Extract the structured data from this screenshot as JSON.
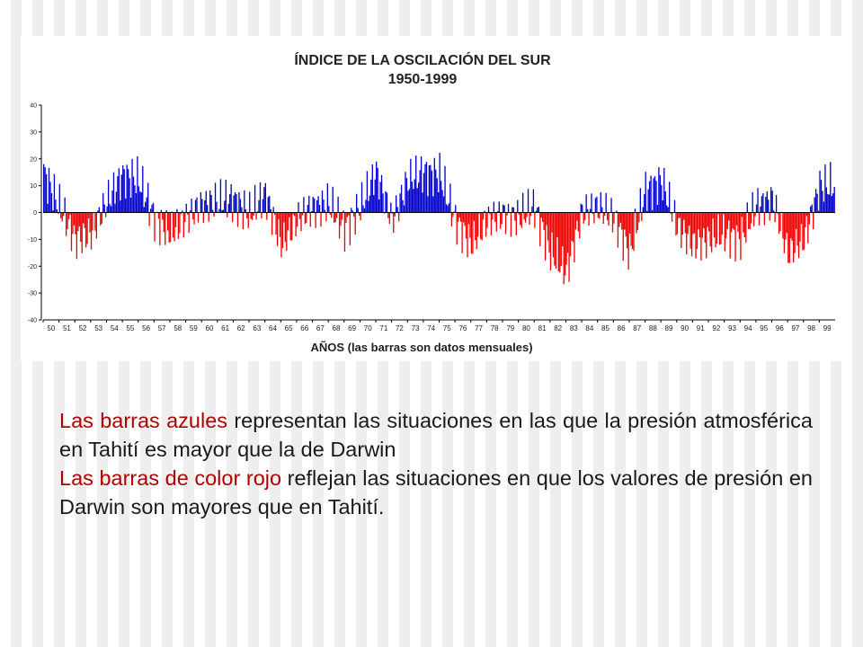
{
  "chart_data": {
    "type": "bar",
    "title": "ÍNDICE DE LA OSCILACIÓN DEL SUR",
    "subtitle": "1950-1999",
    "xlabel": "AÑOS (las barras son datos mensuales)",
    "ylabel": "",
    "ylim": [
      -40,
      40
    ],
    "yticks": [
      "40",
      "30",
      "20",
      "10",
      "0",
      "-10",
      "-20",
      "-30",
      "-40"
    ],
    "ytick_values": [
      40,
      30,
      20,
      10,
      0,
      -10,
      -20,
      -30,
      -40
    ],
    "categories": [
      "50",
      "51",
      "52",
      "53",
      "54",
      "55",
      "56",
      "57",
      "58",
      "59",
      "60",
      "61",
      "62",
      "63",
      "64",
      "65",
      "66",
      "67",
      "68",
      "69",
      "70",
      "71",
      "72",
      "73",
      "74",
      "75",
      "76",
      "77",
      "78",
      "79",
      "80",
      "81",
      "82",
      "83",
      "84",
      "85",
      "86",
      "87",
      "88",
      "89",
      "90",
      "91",
      "92",
      "93",
      "94",
      "95",
      "96",
      "97",
      "98",
      "99"
    ],
    "xtick_labels": [
      "50",
      "51",
      "52",
      "53",
      "54",
      "55",
      "56",
      "57",
      "58",
      "59",
      "60",
      "61",
      "62",
      "63",
      "64",
      "65",
      "66",
      "67",
      "68",
      "69",
      "70",
      "71",
      "72",
      "73",
      "74",
      "75",
      "76",
      "77",
      "78",
      "79",
      "80",
      "81",
      "82",
      "83",
      "84",
      "85",
      "86",
      "87",
      "88",
      "89",
      "90",
      "91",
      "92",
      "93",
      "94",
      "95",
      "96",
      "97",
      "98",
      "99"
    ],
    "annual_anchor_values": [
      15,
      2,
      -10,
      -8,
      4,
      14,
      12,
      -2,
      -8,
      -2,
      3,
      4,
      5,
      -1,
      7,
      -12,
      -3,
      2,
      3,
      -6,
      2,
      15,
      -3,
      12,
      15,
      14,
      -3,
      -12,
      -3,
      -1,
      -2,
      2,
      -15,
      -22,
      0,
      2,
      -2,
      -15,
      8,
      12,
      -5,
      -12,
      -10,
      -8,
      -10,
      2,
      5,
      -15,
      -10,
      10
    ],
    "positive_color": "#0000cc",
    "negative_color": "#ee0000",
    "legend": "none",
    "grid": false
  },
  "caption": {
    "p1_highlight": "Las barras azules",
    "p1_text": " representan las situaciones en las que la presión atmosférica en Tahití es mayor que la de Darwin",
    "p2_highlight": "Las barras de color rojo",
    "p2_text": " reflejan las situaciones en que los valores de presión en Darwin son mayores que en Tahití."
  }
}
